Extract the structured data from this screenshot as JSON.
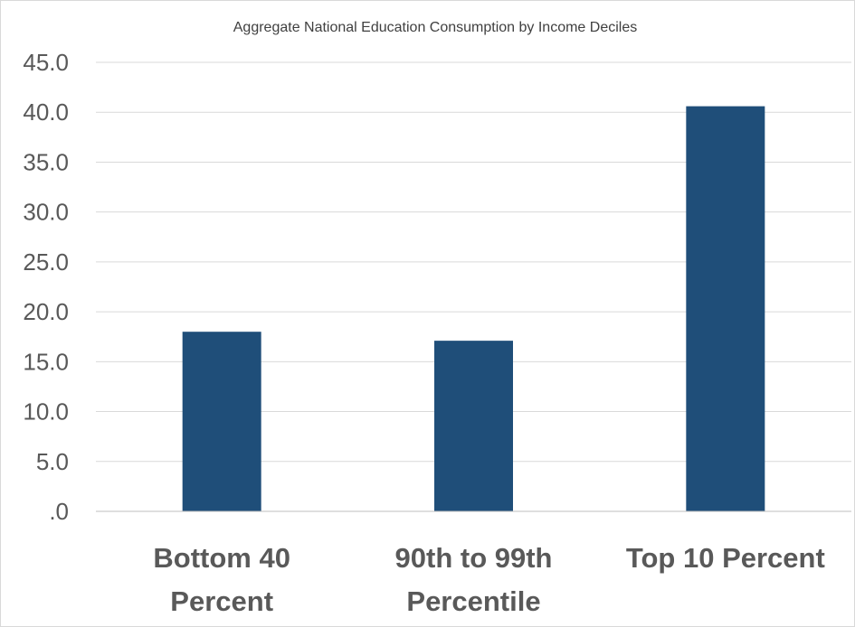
{
  "chart_data": {
    "type": "bar",
    "title": "Aggregate National Education Consumption by Income Deciles",
    "categories": [
      [
        "Bottom 40",
        "Percent"
      ],
      [
        "90th to 99th",
        "Percentile"
      ],
      [
        "Top 10 Percent"
      ]
    ],
    "values": [
      18.0,
      17.1,
      40.6
    ],
    "ylim": [
      0,
      45
    ],
    "yticks": [
      ".0",
      "5.0",
      "10.0",
      "15.0",
      "20.0",
      "25.0",
      "30.0",
      "35.0",
      "40.0",
      "45.0"
    ],
    "ytick_values": [
      0,
      5,
      10,
      15,
      20,
      25,
      30,
      35,
      40,
      45
    ],
    "bar_color": "#1f4e79",
    "grid": true,
    "legend": "none"
  }
}
